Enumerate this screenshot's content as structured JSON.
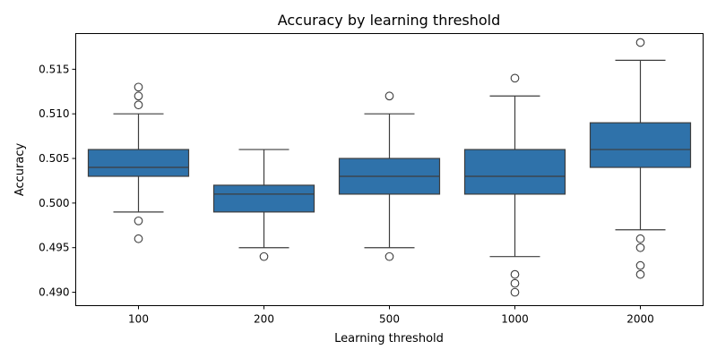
{
  "chart_data": {
    "type": "box",
    "title": "Accuracy by learning threshold",
    "xlabel": "Learning threshold",
    "ylabel": "Accuracy",
    "categories": [
      "100",
      "200",
      "500",
      "1000",
      "2000"
    ],
    "ylim": [
      0.4885,
      0.519
    ],
    "yticks": [
      0.49,
      0.495,
      0.5,
      0.505,
      0.51,
      0.515
    ],
    "ytick_labels": [
      "0.490",
      "0.495",
      "0.500",
      "0.505",
      "0.510",
      "0.515"
    ],
    "grid": false,
    "color": "#2f72aa",
    "boxes": [
      {
        "category": "100",
        "whisker_low": 0.499,
        "q1": 0.503,
        "median": 0.504,
        "q3": 0.506,
        "whisker_high": 0.51,
        "outliers": [
          0.513,
          0.512,
          0.511,
          0.498,
          0.496
        ]
      },
      {
        "category": "200",
        "whisker_low": 0.495,
        "q1": 0.499,
        "median": 0.501,
        "q3": 0.502,
        "whisker_high": 0.506,
        "outliers": [
          0.494
        ]
      },
      {
        "category": "500",
        "whisker_low": 0.495,
        "q1": 0.501,
        "median": 0.503,
        "q3": 0.505,
        "whisker_high": 0.51,
        "outliers": [
          0.512,
          0.494
        ]
      },
      {
        "category": "1000",
        "whisker_low": 0.494,
        "q1": 0.501,
        "median": 0.503,
        "q3": 0.506,
        "whisker_high": 0.512,
        "outliers": [
          0.514,
          0.492,
          0.491,
          0.49
        ]
      },
      {
        "category": "2000",
        "whisker_low": 0.497,
        "q1": 0.504,
        "median": 0.506,
        "q3": 0.509,
        "whisker_high": 0.516,
        "outliers": [
          0.518,
          0.496,
          0.495,
          0.493,
          0.492
        ]
      }
    ]
  }
}
